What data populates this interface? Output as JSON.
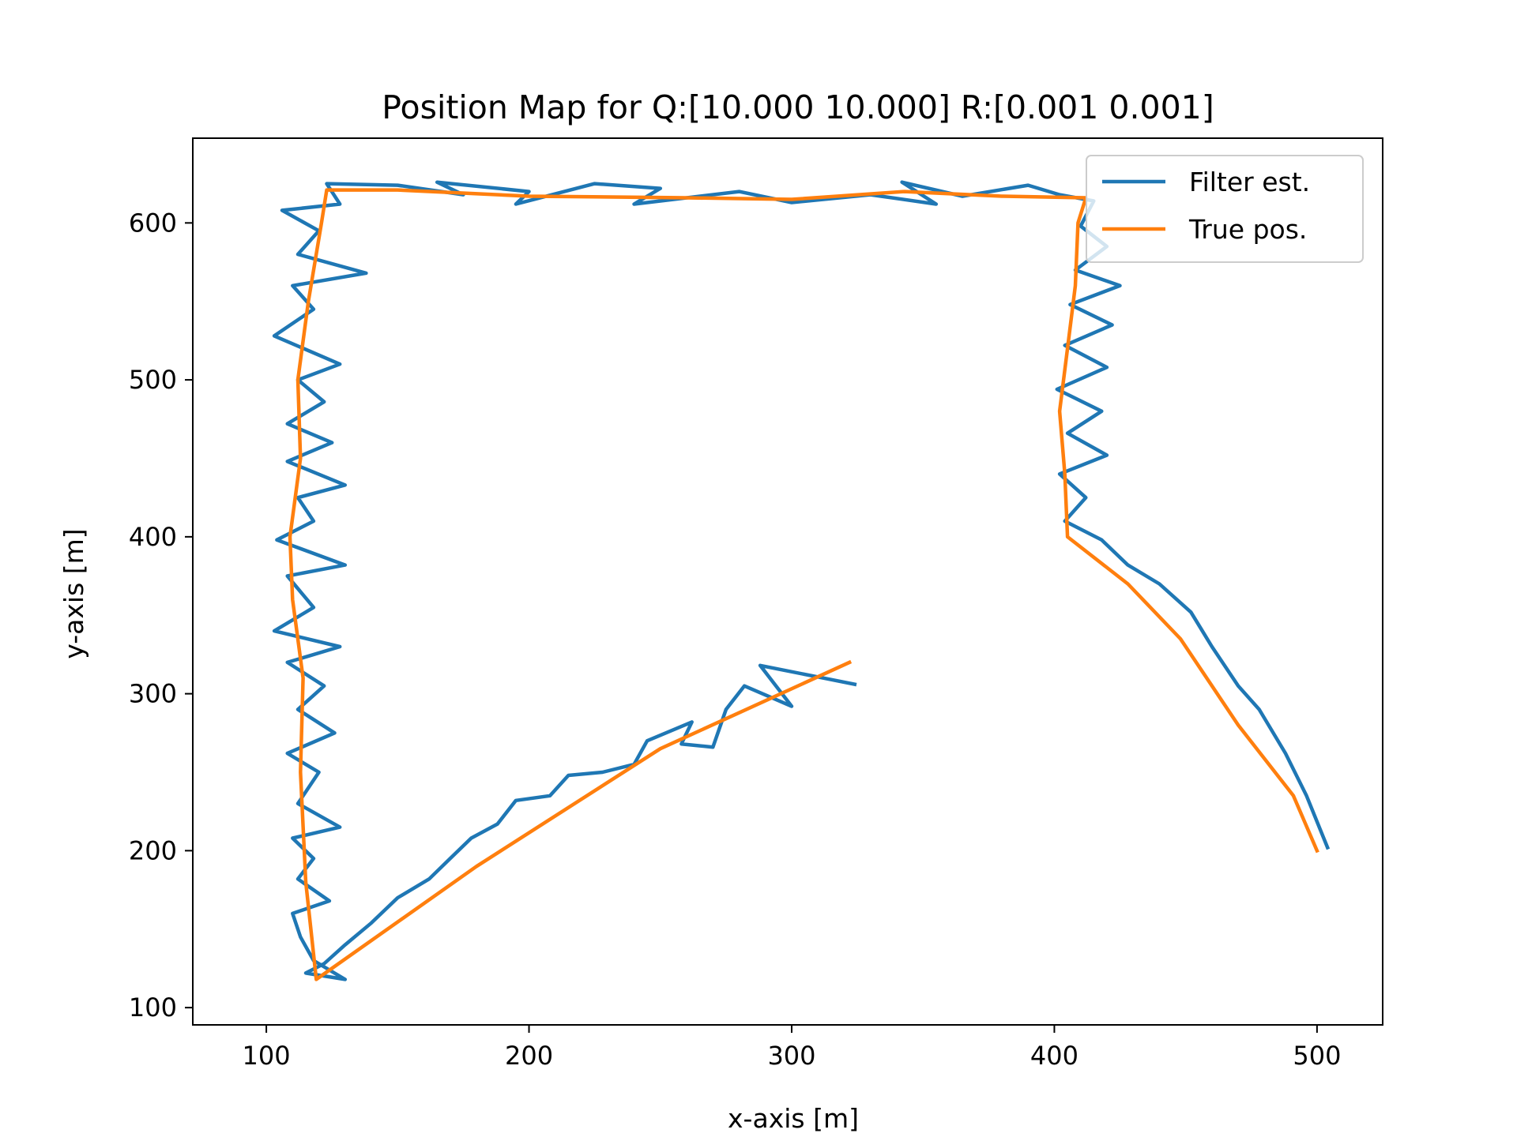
{
  "chart_data": {
    "type": "line",
    "title": "Position Map for Q:[10.000 10.000] R:[0.001 0.001]",
    "xlabel": "x-axis [m]",
    "ylabel": "y-axis [m]",
    "xlim": [
      72,
      525
    ],
    "ylim": [
      89,
      654
    ],
    "xticks": [
      100,
      200,
      300,
      400,
      500
    ],
    "yticks": [
      100,
      200,
      300,
      400,
      500,
      600
    ],
    "grid": false,
    "legend_position": "top-right",
    "series": [
      {
        "name": "True pos.",
        "color": "#ff7f0e",
        "points": [
          [
            322,
            320
          ],
          [
            250,
            265
          ],
          [
            180,
            190
          ],
          [
            119,
            118
          ],
          [
            115,
            180
          ],
          [
            113,
            250
          ],
          [
            114,
            310
          ],
          [
            110,
            360
          ],
          [
            109,
            400
          ],
          [
            113,
            450
          ],
          [
            112,
            500
          ],
          [
            116,
            550
          ],
          [
            121,
            600
          ],
          [
            123,
            621
          ],
          [
            150,
            621
          ],
          [
            200,
            617
          ],
          [
            260,
            616
          ],
          [
            300,
            615
          ],
          [
            343,
            620
          ],
          [
            380,
            617
          ],
          [
            412,
            616
          ],
          [
            409,
            600
          ],
          [
            408,
            560
          ],
          [
            405,
            520
          ],
          [
            402,
            480
          ],
          [
            404,
            440
          ],
          [
            405,
            400
          ],
          [
            428,
            370
          ],
          [
            448,
            335
          ],
          [
            470,
            280
          ],
          [
            491,
            235
          ],
          [
            500,
            200
          ]
        ]
      },
      {
        "name": "Filter est.",
        "color": "#1f77b4",
        "points": [
          [
            324,
            306
          ],
          [
            312,
            310
          ],
          [
            288,
            318
          ],
          [
            300,
            292
          ],
          [
            282,
            305
          ],
          [
            275,
            290
          ],
          [
            270,
            266
          ],
          [
            258,
            268
          ],
          [
            262,
            282
          ],
          [
            245,
            270
          ],
          [
            240,
            255
          ],
          [
            228,
            250
          ],
          [
            215,
            248
          ],
          [
            208,
            235
          ],
          [
            195,
            232
          ],
          [
            188,
            217
          ],
          [
            178,
            208
          ],
          [
            170,
            195
          ],
          [
            162,
            182
          ],
          [
            150,
            170
          ],
          [
            140,
            154
          ],
          [
            130,
            140
          ],
          [
            122,
            128
          ],
          [
            115,
            122
          ],
          [
            130,
            118
          ],
          [
            118,
            130
          ],
          [
            113,
            145
          ],
          [
            110,
            160
          ],
          [
            124,
            168
          ],
          [
            112,
            182
          ],
          [
            118,
            195
          ],
          [
            110,
            208
          ],
          [
            128,
            215
          ],
          [
            112,
            230
          ],
          [
            120,
            250
          ],
          [
            108,
            262
          ],
          [
            126,
            275
          ],
          [
            112,
            290
          ],
          [
            122,
            305
          ],
          [
            108,
            320
          ],
          [
            128,
            330
          ],
          [
            103,
            340
          ],
          [
            118,
            355
          ],
          [
            108,
            375
          ],
          [
            130,
            382
          ],
          [
            104,
            398
          ],
          [
            118,
            410
          ],
          [
            112,
            425
          ],
          [
            130,
            433
          ],
          [
            108,
            448
          ],
          [
            125,
            460
          ],
          [
            108,
            472
          ],
          [
            122,
            486
          ],
          [
            112,
            500
          ],
          [
            128,
            510
          ],
          [
            103,
            528
          ],
          [
            118,
            545
          ],
          [
            110,
            560
          ],
          [
            138,
            568
          ],
          [
            112,
            580
          ],
          [
            120,
            595
          ],
          [
            106,
            608
          ],
          [
            128,
            612
          ],
          [
            123,
            625
          ],
          [
            150,
            624
          ],
          [
            175,
            618
          ],
          [
            165,
            626
          ],
          [
            200,
            620
          ],
          [
            195,
            612
          ],
          [
            225,
            625
          ],
          [
            250,
            622
          ],
          [
            240,
            612
          ],
          [
            280,
            620
          ],
          [
            300,
            613
          ],
          [
            330,
            618
          ],
          [
            355,
            612
          ],
          [
            342,
            626
          ],
          [
            365,
            617
          ],
          [
            390,
            624
          ],
          [
            402,
            618
          ],
          [
            415,
            614
          ],
          [
            410,
            598
          ],
          [
            420,
            585
          ],
          [
            408,
            570
          ],
          [
            425,
            560
          ],
          [
            406,
            548
          ],
          [
            422,
            535
          ],
          [
            404,
            522
          ],
          [
            420,
            508
          ],
          [
            401,
            494
          ],
          [
            418,
            480
          ],
          [
            405,
            466
          ],
          [
            420,
            452
          ],
          [
            402,
            440
          ],
          [
            412,
            425
          ],
          [
            404,
            410
          ],
          [
            418,
            398
          ],
          [
            428,
            382
          ],
          [
            440,
            370
          ],
          [
            452,
            352
          ],
          [
            460,
            330
          ],
          [
            470,
            305
          ],
          [
            478,
            290
          ],
          [
            488,
            262
          ],
          [
            496,
            235
          ],
          [
            504,
            202
          ]
        ]
      }
    ]
  }
}
